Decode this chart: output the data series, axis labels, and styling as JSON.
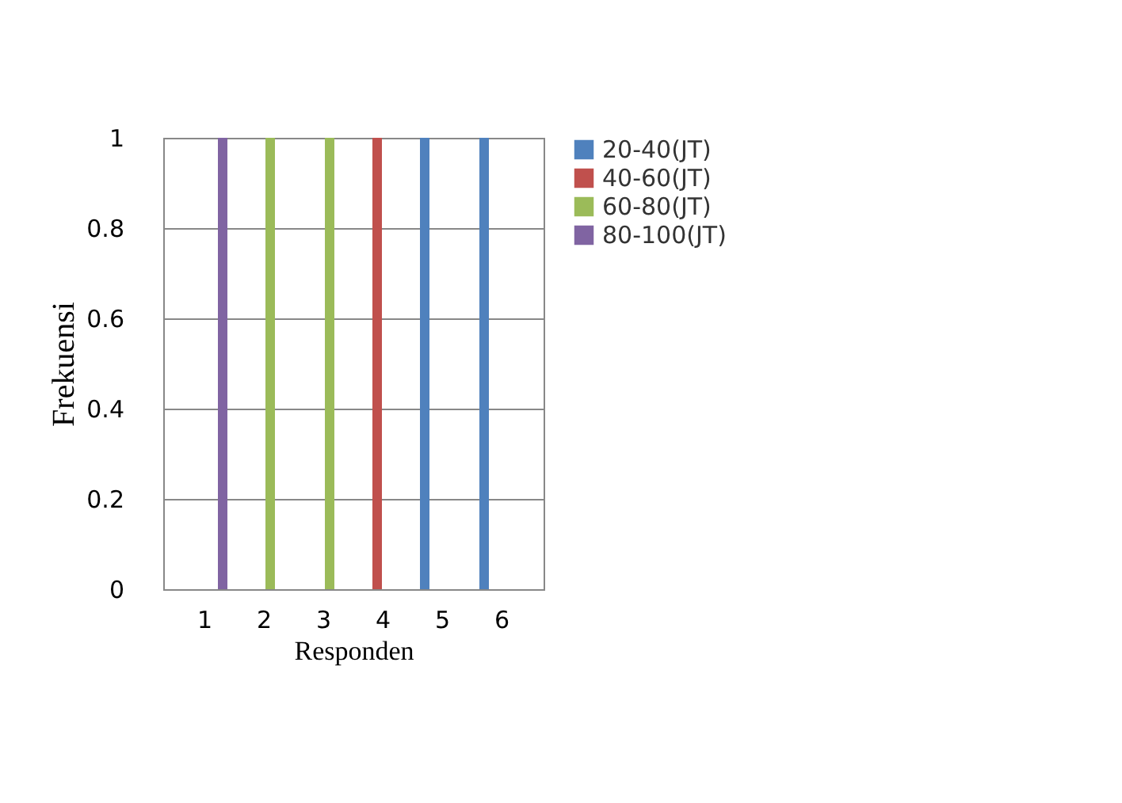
{
  "chart_data": {
    "type": "bar",
    "xlabel": "Responden",
    "ylabel": "Frekuensi",
    "categories": [
      "1",
      "2",
      "3",
      "4",
      "5",
      "6"
    ],
    "series": [
      {
        "name": "20-40(JT)",
        "color": "#4f81bd",
        "values": [
          0,
          0,
          0,
          0,
          1,
          1
        ]
      },
      {
        "name": "40-60(JT)",
        "color": "#c0504d",
        "values": [
          0,
          0,
          0,
          1,
          0,
          0
        ]
      },
      {
        "name": "60-80(JT)",
        "color": "#9bbb59",
        "values": [
          0,
          1,
          1,
          0,
          0,
          0
        ]
      },
      {
        "name": "80-100(JT)",
        "color": "#8064a2",
        "values": [
          1,
          0,
          0,
          0,
          0,
          0
        ]
      }
    ],
    "ylim": [
      0,
      1
    ],
    "yticks": [
      0,
      0.2,
      0.4,
      0.6,
      0.8,
      1
    ],
    "grid": "y",
    "legend": "right"
  }
}
